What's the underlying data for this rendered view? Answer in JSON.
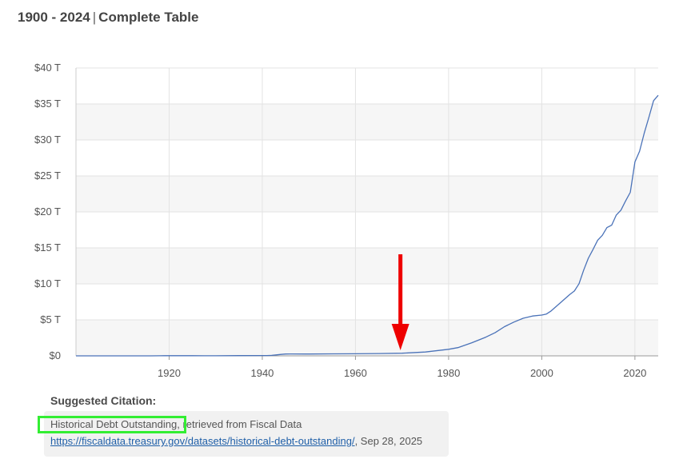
{
  "header": {
    "range": "1900 - 2024",
    "separator": "|",
    "table_link": "Complete Table"
  },
  "chart_data": {
    "type": "line",
    "title": "",
    "xlabel": "",
    "ylabel": "",
    "xlim": [
      1900,
      2025
    ],
    "ylim": [
      0,
      40
    ],
    "y_unit_suffix": " T",
    "y_ticks": [
      0,
      5,
      10,
      15,
      20,
      25,
      30,
      35,
      40
    ],
    "y_tick_labels": [
      "$0",
      "$5 T",
      "$10 T",
      "$15 T",
      "$20 T",
      "$25 T",
      "$30 T",
      "$35 T",
      "$40 T"
    ],
    "x_ticks": [
      1920,
      1940,
      1960,
      1980,
      2000,
      2020
    ],
    "x_tick_labels": [
      "1920",
      "1940",
      "1960",
      "1980",
      "2000",
      "2020"
    ],
    "grid": true,
    "line_color": "#4a72b8",
    "series": [
      {
        "x": [
          1900,
          1910,
          1916,
          1918,
          1919,
          1925,
          1930,
          1935,
          1940,
          1941,
          1942,
          1943,
          1944,
          1945,
          1946,
          1950,
          1955,
          1960,
          1965,
          1970,
          1975,
          1980,
          1982,
          1985,
          1988,
          1990,
          1992,
          1994,
          1996,
          1998,
          2000,
          2001,
          2002,
          2004,
          2006,
          2007,
          2008,
          2009,
          2010,
          2011,
          2012,
          2013,
          2014,
          2015,
          2016,
          2017,
          2018,
          2019,
          2020,
          2021,
          2022,
          2023,
          2024,
          2025
        ],
        "y": [
          0.0012,
          0.0012,
          0.0012,
          0.012,
          0.025,
          0.021,
          0.016,
          0.029,
          0.043,
          0.049,
          0.072,
          0.137,
          0.201,
          0.259,
          0.269,
          0.257,
          0.274,
          0.287,
          0.317,
          0.371,
          0.533,
          0.908,
          1.14,
          1.82,
          2.6,
          3.23,
          4.06,
          4.69,
          5.22,
          5.53,
          5.67,
          5.81,
          6.23,
          7.38,
          8.51,
          9.01,
          10.02,
          11.91,
          13.56,
          14.79,
          16.07,
          16.74,
          17.82,
          18.15,
          19.57,
          20.24,
          21.52,
          22.72,
          26.95,
          28.43,
          30.93,
          33.17,
          35.46,
          36.2
        ]
      }
    ],
    "annotation": {
      "type": "red-arrow",
      "points_to_x": 1970,
      "color": "#ee0000"
    }
  },
  "citation": {
    "title": "Suggested Citation:",
    "dataset_name": "Historical Debt Outstanding",
    "retrieved_text": ", retrieved from Fiscal Data",
    "url": "https://fiscaldata.treasury.gov/datasets/historical-debt-outstanding/",
    "date_text": ", Sep 28, 2025",
    "highlight_color": "#33ee33"
  }
}
